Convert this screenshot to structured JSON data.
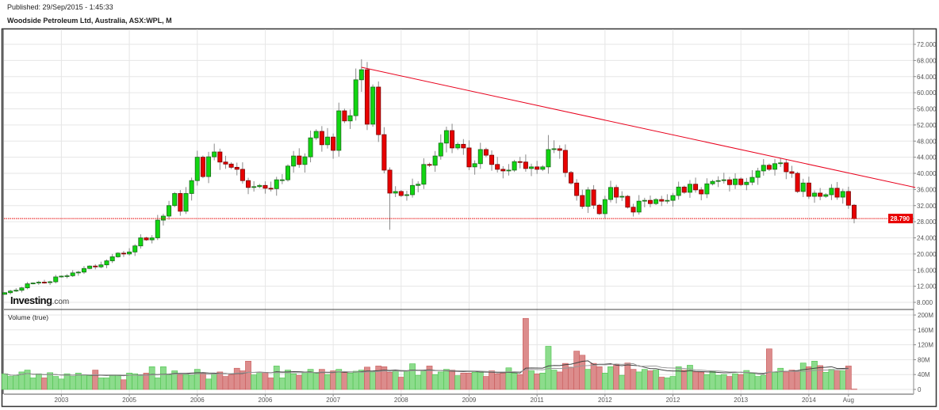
{
  "header": {
    "published": "Published: 29/Sep/2015 - 1:45:33",
    "title": "Woodside Petroleum Ltd, Australia, ASX:WPL, M"
  },
  "logo": {
    "brand": "Investing",
    "suffix": ".com"
  },
  "volume_panel": {
    "title": "Volume (true)"
  },
  "colors": {
    "up": "#11d611",
    "down": "#e80000",
    "trendline": "#e8001c",
    "current_price": "#e80000",
    "vol_up": "#8cdc8c",
    "vol_down": "#dc8c8c"
  },
  "chart_data": [
    {
      "type": "candlestick",
      "title": "Woodside Petroleum Ltd, Australia, ASX:WPL, M",
      "interval": "monthly",
      "first_open": 10.0,
      "closes": [
        10.4,
        10.8,
        11,
        11.6,
        12.6,
        12.8,
        13,
        12.9,
        13.1,
        14.3,
        14.5,
        14.6,
        15.3,
        15.5,
        16.4,
        17.0,
        16.8,
        17.3,
        18.3,
        19.3,
        20.2,
        20.0,
        20.5,
        22,
        24,
        23.5,
        24,
        28.4,
        29.4,
        32,
        35,
        30.6,
        35,
        38.2,
        44,
        39.2,
        44.1,
        45.3,
        42.8,
        42.3,
        41.5,
        41,
        38.2,
        36.5,
        36.7,
        37,
        36.3,
        36.2,
        38.4,
        38.4,
        41.8,
        44.3,
        42.2,
        44.1,
        48.8,
        50.4,
        47.1,
        49.0,
        45.7,
        55.5,
        53,
        54.3,
        63.2,
        65.7,
        52.2,
        61.4,
        49.6,
        40.8,
        35.1,
        35.5,
        34.5,
        34.7,
        37,
        37.3,
        42.2,
        42,
        44.3,
        47.5,
        50.6,
        46.3,
        47.2,
        46.3,
        41.6,
        42.4,
        45.9,
        44.5,
        42.2,
        41,
        40.6,
        40.8,
        42.9,
        42.8,
        41.2,
        41.6,
        41,
        41.6,
        45.9,
        46.1,
        45.7,
        40.2,
        37.6,
        34.5,
        31.8,
        35.9,
        32.1,
        30,
        33.5,
        36.5,
        34.1,
        34.3,
        31.6,
        30.4,
        33.1,
        33.3,
        32.5,
        33.5,
        33.1,
        33.3,
        34.5,
        36.6,
        35.3,
        37.3,
        35.9,
        34.9,
        37.4,
        38,
        38.2,
        38.4,
        37.2,
        38.6,
        37.2,
        37.8,
        39,
        40.6,
        42,
        41,
        42.4,
        42.6,
        40.4,
        40,
        35.5,
        37.6,
        34.3,
        35.1,
        34.3,
        34.7,
        36.3,
        34.1,
        35.5,
        32.1,
        28.79
      ],
      "extreme_overrides": [
        {
          "index": 63,
          "high": 68.3
        },
        {
          "index": 62,
          "high": 66.0
        },
        {
          "index": 68,
          "low": 26.0
        },
        {
          "index": 96,
          "high": 49.5
        },
        {
          "index": 150,
          "low": 27.6
        },
        {
          "index": 137,
          "high": 43.8
        }
      ],
      "current_price": 28.79,
      "current_price_label": "28.790",
      "trendline": [
        {
          "index": 63,
          "price": 66.3
        },
        {
          "index": 160.8,
          "price": 36.5
        }
      ],
      "yaxis": {
        "min": 8,
        "max": 72,
        "step": 4,
        "tick_labels": [
          "8.000",
          "12.000",
          "16.000",
          "20.000",
          "24.000",
          "28.000",
          "32.000",
          "36.000",
          "40.000",
          "44.000",
          "48.000",
          "52.000",
          "56.000",
          "60.000",
          "64.000",
          "68.000",
          "72.000"
        ]
      },
      "xaxis": {
        "tick_indices": [
          10,
          22,
          34,
          46,
          58,
          70,
          82,
          94,
          106,
          118,
          130,
          142,
          149
        ],
        "tick_labels": [
          "2003",
          "2005",
          "2006",
          "2006",
          "2007",
          "2008",
          "2009",
          "2011",
          "2012",
          "2012",
          "2013",
          "2014",
          "Aug"
        ]
      },
      "grid": true
    },
    {
      "type": "bar",
      "title": "Volume (true)",
      "unit": "M",
      "values": [
        42,
        35,
        38,
        47,
        52,
        31,
        42,
        31,
        45,
        35,
        28,
        42,
        35,
        44,
        39,
        37,
        52,
        31,
        31,
        39,
        39,
        26,
        44,
        42,
        39,
        44,
        61,
        31,
        61,
        39,
        50,
        40,
        40,
        38,
        54,
        44,
        28,
        42,
        47,
        35,
        40,
        57,
        50,
        76,
        39,
        46,
        46,
        31,
        63,
        31,
        52,
        42,
        38,
        46,
        54,
        46,
        54,
        40,
        50,
        54,
        46,
        44,
        49,
        52,
        60,
        49,
        63,
        61,
        46,
        50,
        33,
        50,
        69,
        38,
        50,
        63,
        40,
        47,
        54,
        52,
        37,
        44,
        44,
        46,
        47,
        35,
        50,
        42,
        44,
        58,
        44,
        40,
        191,
        50,
        42,
        44,
        116,
        52,
        47,
        70,
        60,
        103,
        92,
        54,
        70,
        61,
        44,
        61,
        67,
        38,
        71,
        54,
        47,
        54,
        50,
        52,
        33,
        31,
        35,
        61,
        52,
        65,
        47,
        46,
        40,
        49,
        38,
        40,
        35,
        42,
        40,
        51,
        43,
        35,
        38,
        109,
        46,
        57,
        47,
        52,
        49,
        71,
        61,
        76,
        64,
        46,
        54,
        50,
        50,
        63,
        1
      ],
      "moving_averages": [
        12,
        20
      ],
      "yaxis": {
        "min": 0,
        "max": 200,
        "tick_values": [
          0,
          40,
          80,
          120,
          160,
          200
        ],
        "tick_labels": [
          "0",
          "40M",
          "80M",
          "120M",
          "160M",
          "200M"
        ]
      }
    }
  ]
}
